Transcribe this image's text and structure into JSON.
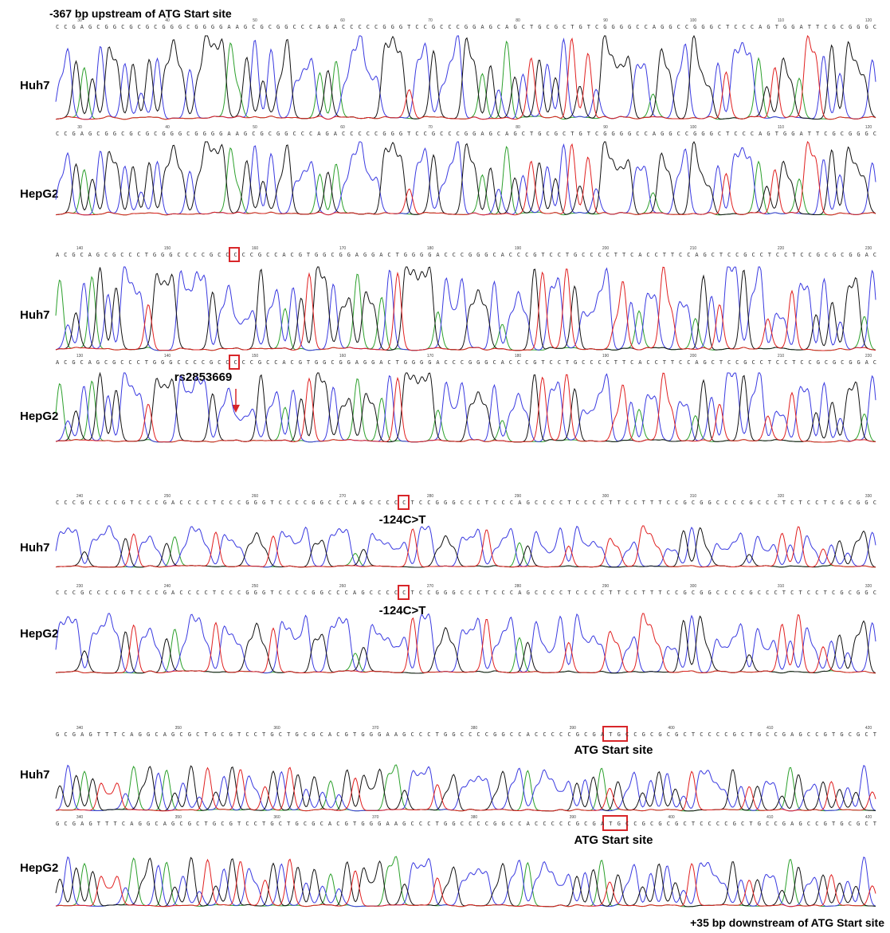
{
  "title": "-367 bp upstream of ATG Start site",
  "footer": "+35 bp downstream of ATG Start site",
  "panels": [
    {
      "tracks": [
        {
          "label": "Huh7",
          "positions": [
            "30",
            "40",
            "50",
            "60",
            "70",
            "80",
            "90",
            "100",
            "110",
            "120"
          ],
          "sequence": "CCGAGCGGCGCGCGGGCGGGGAAGCGCGGCCCAGACCCCCGGGTCCGCCCGGAGCAGCTGCGCTGTCGGGGCCAGGCCGGGCTCCCAGTGGATTCGCGGGC"
        },
        {
          "label": "HepG2",
          "positions": [
            "30",
            "40",
            "50",
            "60",
            "70",
            "80",
            "90",
            "100",
            "110",
            "120"
          ],
          "sequence": "CCGAGCGGCGCGCGGGCGGGGAAGCGCGGCCCAGACCCCCGGGTCCGCCCGGAGCAGCTGCGCTGTCGGGGCCAGGCCGGGCTCCCAGTGGATTCGCGGGC"
        }
      ]
    },
    {
      "tracks": [
        {
          "label": "Huh7",
          "positions": [
            "140",
            "150",
            "160",
            "170",
            "180",
            "190",
            "200",
            "210",
            "220",
            "230"
          ],
          "sequence": "ACGCAGCGCCCTGGGCCCCGCCCCCGCCACGTGGCGGAGGACTGGGGACCCGGGCACCCGTCCTGCCCCTTCACCTTCCAGCTCCGCCTCCTCCGCGCGGAC"
        },
        {
          "label": "HepG2",
          "positions": [
            "130",
            "140",
            "150",
            "160",
            "170",
            "180",
            "190",
            "200",
            "210",
            "220"
          ],
          "sequence": "ACGCAGCGCCCTGGGCCCCGCCCCCGCCACGTGGCGGAGGACTGGGGACCCGGGCACCCGTCCTGCCCCTTCACCTTCCAGCTCCGCCTCCTCCGCGCGGAC",
          "annotation": "rs2853669"
        }
      ]
    },
    {
      "tracks": [
        {
          "label": "Huh7",
          "positions": [
            "240",
            "250",
            "260",
            "270",
            "280",
            "290",
            "300",
            "310",
            "320",
            "330"
          ],
          "sequence": "CCCGCCCCGTCCCGACCCCTCCCGGGTCCCCGGCCCAGCCCCCTCCGGGCCCTCCCAGCCCCTCCCCTTCCTTTCCGCGGCCCCGCCCTCTCCTCGCGGC",
          "annotation": "-124C>T"
        },
        {
          "label": "HepG2",
          "positions": [
            "230",
            "240",
            "250",
            "260",
            "270",
            "280",
            "290",
            "300",
            "310",
            "320"
          ],
          "sequence": "CCCGCCCCGTCCCGACCCCTCCCGGGTCCCCGGCCCAGCCCCCTCCGGGCCCTCCCAGCCCCTCCCCTTCCTTTCCGCGGCCCCGCCCTCTCCTCGCGGC",
          "annotation": "-124C>T"
        }
      ]
    },
    {
      "tracks": [
        {
          "label": "Huh7",
          "positions": [
            "340",
            "350",
            "360",
            "370",
            "380",
            "390",
            "400",
            "410",
            "420"
          ],
          "sequence": "GCGAGTTTCAGGCAGCGCTGCGTCCTGCTGCGCACGTGGGAAGCCCTGGCCCCGGCCACCCCCGCGATGCCGCGCGCTCCCCGCTGCCGAGCCGTGCGCT",
          "annotation": "ATG Start site"
        },
        {
          "label": "HepG2",
          "positions": [
            "340",
            "350",
            "360",
            "370",
            "380",
            "390",
            "400",
            "410",
            "420"
          ],
          "sequence": "GCGAGTTTCAGGCAGCGCTGCGTCCTGCTGCGCACGTGGGAAGCCCTGGCCCCGGCCACCCCCGCGATGCCGCGCGCTCCCCGCTGCCGAGCCGTGCGCT",
          "annotation": "ATG Start site"
        }
      ]
    }
  ]
}
